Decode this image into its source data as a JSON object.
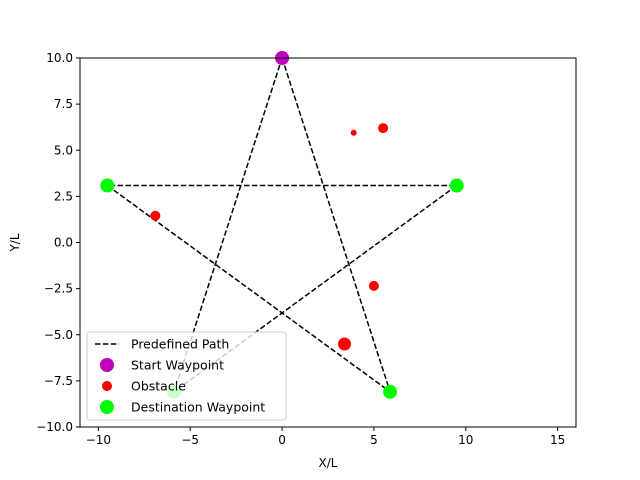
{
  "chart_data": {
    "type": "scatter",
    "title": "",
    "xlabel": "X/L",
    "ylabel": "Y/L",
    "xlim": [
      -11,
      16
    ],
    "ylim": [
      -10,
      10
    ],
    "xticks": [
      -10,
      -5,
      0,
      5,
      10,
      15
    ],
    "yticks": [
      -10.0,
      -7.5,
      -5.0,
      -2.5,
      0.0,
      2.5,
      5.0,
      7.5,
      10.0
    ],
    "xtick_labels": [
      "−10",
      "−5",
      "0",
      "5",
      "10",
      "15"
    ],
    "ytick_labels": [
      "−10.0",
      "−7.5",
      "−5.0",
      "−2.5",
      "0.0",
      "2.5",
      "5.0",
      "7.5",
      "10.0"
    ],
    "grid": false,
    "legend_placement": "lower-left",
    "path": {
      "name": "Predefined Path",
      "style": "dashed",
      "color": "#000000",
      "x": [
        0,
        5.88,
        -9.51,
        9.51,
        -5.88,
        0
      ],
      "y": [
        10,
        -8.09,
        3.09,
        3.09,
        -8.09,
        10
      ]
    },
    "start_waypoint": {
      "name": "Start Waypoint",
      "color": "#bf00bf",
      "x": 0,
      "y": 10
    },
    "obstacles": {
      "name": "Obstacle",
      "color": "#ff0000",
      "points": [
        {
          "x": 3.9,
          "y": 5.95,
          "size": "small"
        },
        {
          "x": 5.5,
          "y": 6.2,
          "size": "medium"
        },
        {
          "x": -6.9,
          "y": 1.45,
          "size": "medium"
        },
        {
          "x": 5.0,
          "y": -2.35,
          "size": "medium"
        },
        {
          "x": 3.4,
          "y": -5.5,
          "size": "large"
        }
      ]
    },
    "destination_waypoints": {
      "name": "Destination Waypoint",
      "color": "#00ff00",
      "points": [
        {
          "x": -9.51,
          "y": 3.09
        },
        {
          "x": 9.51,
          "y": 3.09
        },
        {
          "x": 5.88,
          "y": -8.09
        },
        {
          "x": -5.88,
          "y": -8.09
        }
      ]
    },
    "legend": [
      "Predefined Path",
      "Start Waypoint",
      "Obstacle",
      "Destination Waypoint"
    ]
  }
}
